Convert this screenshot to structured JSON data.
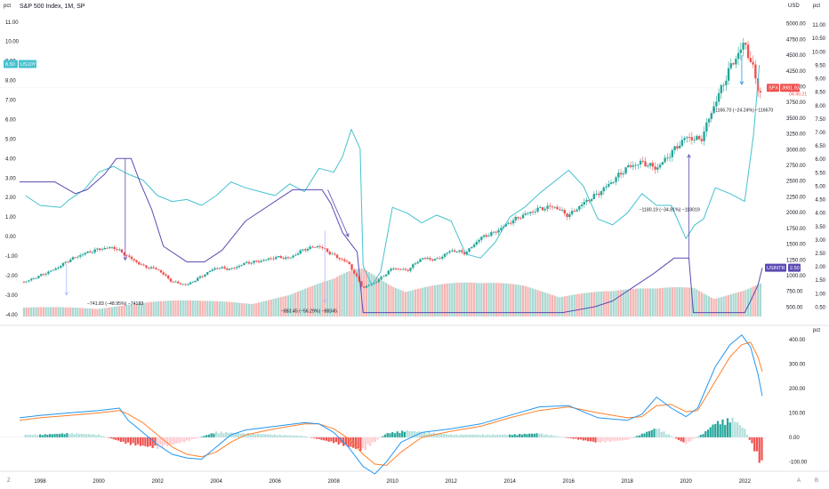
{
  "header": {
    "title": "S&P 500 Index, 1M, SP"
  },
  "units": {
    "left": "pct",
    "right_top": "USD",
    "right_far": "pct",
    "lower_right": "pct"
  },
  "bottom_corners": {
    "left": "Z",
    "right_a": "A",
    "right_b": "B"
  },
  "colors": {
    "up": "#26a69a",
    "down": "#ef5350",
    "up_vol": "#a8d8d2",
    "down_vol": "#f5b5b3",
    "us10y": "#45c1cf",
    "ustr": "#5b4bb2",
    "macd": "#2196f3",
    "signal": "#ff7f2a",
    "hist_up": "#26a69a",
    "hist_up_light": "#b2dfdb",
    "hist_down": "#ef5350",
    "hist_down_light": "#ffcdd2"
  },
  "chart_data": [
    {
      "type": "line",
      "title": "S&P 500 Index, 1M, SP",
      "xlim": [
        1997.3,
        2022.75
      ],
      "x_ticks": [
        "1998",
        "2000",
        "2002",
        "2004",
        "2006",
        "2008",
        "2010",
        "2012",
        "2014",
        "2016",
        "2018",
        "2020",
        "2022"
      ],
      "price_axis": {
        "unit": "USD",
        "ylim": [
          350,
          5150
        ],
        "ticks": [
          "500.00",
          "750.00",
          "1000.00",
          "1250.00",
          "1500.00",
          "1750.00",
          "2000.00",
          "2250.00",
          "2500.00",
          "2750.00",
          "3000.00",
          "3250.00",
          "3500.00",
          "3750.00",
          "4000.00",
          "4250.00",
          "4500.00",
          "4750.00",
          "5000.00"
        ]
      },
      "left_axis": {
        "unit": "pct",
        "ylim": [
          -4.1,
          11.4
        ],
        "ticks": [
          "-4.00",
          "-3.00",
          "-2.00",
          "-1.00",
          "0.00",
          "1.00",
          "2.00",
          "3.00",
          "4.00",
          "5.00",
          "6.00",
          "7.00",
          "8.00",
          "9.00",
          "10.00",
          "11.00"
        ]
      },
      "right_pct_axis": {
        "unit": "pct",
        "ylim": [
          0.15,
          11.4
        ],
        "ticks": [
          "0.50",
          "1.00",
          "1.50",
          "2.00",
          "2.50",
          "3.00",
          "3.50",
          "4.00",
          "4.50",
          "5.00",
          "5.50",
          "6.00",
          "6.50",
          "7.00",
          "7.50",
          "8.00",
          "8.50",
          "9.00",
          "9.50",
          "10.00",
          "10.50",
          "11.00"
        ]
      },
      "series": [
        {
          "name": "SPX",
          "kind": "candles",
          "x": [
            1997.5,
            1998,
            1998.5,
            1999,
            1999.5,
            2000,
            2000.5,
            2001,
            2001.5,
            2002,
            2002.5,
            2003,
            2003.5,
            2004,
            2004.5,
            2005,
            2005.5,
            2006,
            2006.5,
            2007,
            2007.5,
            2008,
            2008.5,
            2009,
            2009.5,
            2010,
            2010.5,
            2011,
            2011.5,
            2012,
            2012.5,
            2013,
            2013.5,
            2014,
            2014.5,
            2015,
            2015.5,
            2016,
            2016.5,
            2017,
            2017.5,
            2018,
            2018.5,
            2019,
            2019.5,
            2020,
            2020.5,
            2021,
            2021.5,
            2022,
            2022.3,
            2022.5
          ],
          "close": [
            900,
            1000,
            1100,
            1250,
            1350,
            1420,
            1450,
            1300,
            1150,
            1100,
            900,
            850,
            990,
            1130,
            1100,
            1200,
            1230,
            1290,
            1280,
            1420,
            1470,
            1320,
            1200,
            800,
            920,
            1120,
            1080,
            1280,
            1250,
            1400,
            1360,
            1600,
            1690,
            1850,
            1970,
            2060,
            2100,
            1950,
            2150,
            2300,
            2500,
            2720,
            2800,
            2700,
            2950,
            3200,
            3150,
            3750,
            4300,
            4700,
            4250,
            3900
          ]
        },
        {
          "name": "Volume",
          "kind": "columns",
          "note": "relative monthly volume, up/down shading",
          "x": [
            1997.5,
            1999,
            2000.5,
            2002,
            2003.5,
            2005,
            2006.5,
            2008,
            2008.5,
            2009,
            2010,
            2011.5,
            2013,
            2014.5,
            2016,
            2017.5,
            2019,
            2020.3,
            2021,
            2022,
            2022.5
          ],
          "values": [
            8,
            10,
            12,
            14,
            15,
            18,
            22,
            34,
            42,
            48,
            38,
            34,
            30,
            32,
            28,
            24,
            26,
            34,
            26,
            28,
            32
          ]
        },
        {
          "name": "US10Y",
          "kind": "line",
          "axis": "left_pct",
          "x": [
            1997.5,
            1998,
            1998.7,
            1999,
            1999.5,
            2000,
            2000.5,
            2001,
            2001.5,
            2002,
            2002.5,
            2003,
            2003.5,
            2004,
            2004.5,
            2005,
            2005.5,
            2006,
            2006.5,
            2007,
            2007.5,
            2008,
            2008.3,
            2008.6,
            2008.9,
            2009,
            2009.3,
            2009.6,
            2010,
            2010.5,
            2011,
            2011.5,
            2012,
            2012.5,
            2013,
            2013.5,
            2014,
            2014.5,
            2015,
            2015.5,
            2016,
            2016.5,
            2017,
            2017.5,
            2018,
            2018.5,
            2019,
            2019.5,
            2020,
            2020.3,
            2020.6,
            2021,
            2021.5,
            2022,
            2022.3,
            2022.5
          ],
          "y": [
            2.1,
            1.6,
            1.5,
            1.9,
            2.4,
            3.3,
            3.6,
            3.2,
            2.9,
            2.1,
            1.8,
            1.9,
            1.6,
            2.1,
            2.8,
            2.5,
            2.3,
            2.1,
            2.7,
            2.3,
            3.5,
            3.3,
            4.1,
            5.5,
            4.5,
            -1.5,
            -2.5,
            -1.8,
            1.5,
            1.2,
            0.7,
            1.1,
            0.8,
            -0.9,
            -1.1,
            -0.3,
            1.0,
            1.5,
            2.2,
            2.8,
            3.4,
            2.6,
            0.9,
            0.6,
            1.2,
            2.2,
            1.6,
            1.6,
            -0.1,
            0.6,
            0.9,
            2.5,
            2.2,
            1.8,
            5.2,
            8.8
          ]
        },
        {
          "name": "USINTR",
          "kind": "step",
          "axis": "left_pct",
          "x": [
            1997.3,
            1998.5,
            1999.2,
            1999.6,
            2000.2,
            2000.6,
            2001.1,
            2001.4,
            2001.8,
            2002.2,
            2003.0,
            2003.6,
            2004.2,
            2005,
            2006.6,
            2007.6,
            2007.9,
            2008.3,
            2008.8,
            2009,
            2015.8,
            2016.9,
            2017.5,
            2018.2,
            2018.9,
            2019.6,
            2020.1,
            2020.25,
            2022.0,
            2022.2,
            2022.45,
            2022.6
          ],
          "y": [
            2.8,
            2.8,
            2.2,
            2.4,
            3.2,
            4.0,
            4.0,
            2.8,
            1.4,
            -0.5,
            -1.3,
            -1.3,
            -0.7,
            0.8,
            2.4,
            2.4,
            1.7,
            0.2,
            -0.8,
            -3.9,
            -3.9,
            -3.6,
            -3.3,
            -2.6,
            -1.9,
            -1.1,
            -1.1,
            -3.9,
            -3.9,
            -3.3,
            -2.5,
            -1.6
          ]
        }
      ],
      "annotations": [
        "−741.83 (−48.95%) −74183",
        "−883.45 (−56.29%) −88345",
        "−1180.19 (−34.81%) −118019",
        "−1166.70 (−24.24%) −116670"
      ],
      "labels": {
        "us10y_badge": "US10Y",
        "us10y_value": "8.50",
        "spx_badge": "SPX",
        "spx_value": "3981.93",
        "spx_countdown": "04:45:21",
        "ustr_badge": "USINTR",
        "ustr_value": "2.50"
      }
    },
    {
      "type": "line",
      "title": "",
      "unit": "pct",
      "xlim": [
        1997.3,
        2022.75
      ],
      "ylim": [
        -110,
        430
      ],
      "y_ticks": [
        "400.00",
        "300.00",
        "200.00",
        "100.00",
        "0.00",
        "-100.00"
      ],
      "series": [
        {
          "name": "",
          "kind": "macd",
          "x": [
            1997.3,
            1998,
            1999,
            2000,
            2000.7,
            2001,
            2001.5,
            2002,
            2002.5,
            2003,
            2003.5,
            2004,
            2004.5,
            2005,
            2006,
            2007,
            2007.5,
            2008,
            2008.5,
            2009,
            2009.4,
            2009.8,
            2010.3,
            2011,
            2012,
            2013,
            2014,
            2015,
            2016,
            2017,
            2018,
            2018.5,
            2019,
            2019.5,
            2020,
            2020.4,
            2021,
            2021.5,
            2021.9,
            2022.2,
            2022.45,
            2022.6
          ],
          "y": [
            80,
            90,
            100,
            110,
            120,
            70,
            20,
            -30,
            -70,
            -85,
            -90,
            -40,
            10,
            30,
            45,
            60,
            55,
            20,
            -40,
            -120,
            -150,
            -100,
            -20,
            20,
            35,
            55,
            90,
            125,
            130,
            80,
            70,
            95,
            165,
            120,
            85,
            120,
            290,
            380,
            420,
            370,
            260,
            170
          ]
        },
        {
          "name": "",
          "kind": "signal",
          "x": [
            1997.3,
            1998,
            1999,
            2000,
            2000.7,
            2001,
            2001.5,
            2002,
            2002.5,
            2003,
            2003.5,
            2004,
            2004.5,
            2005,
            2006,
            2007,
            2007.5,
            2008,
            2008.5,
            2009,
            2009.4,
            2009.8,
            2010.3,
            2011,
            2012,
            2013,
            2014,
            2015,
            2016,
            2017,
            2018,
            2018.5,
            2019,
            2019.5,
            2020,
            2020.4,
            2021,
            2021.5,
            2021.9,
            2022.2,
            2022.45,
            2022.6
          ],
          "y": [
            70,
            80,
            90,
            100,
            110,
            95,
            60,
            10,
            -40,
            -70,
            -80,
            -60,
            -20,
            10,
            35,
            55,
            55,
            35,
            -5,
            -70,
            -110,
            -115,
            -60,
            0,
            25,
            45,
            80,
            110,
            125,
            100,
            80,
            85,
            130,
            135,
            105,
            110,
            230,
            330,
            380,
            390,
            330,
            270
          ]
        },
        {
          "name": "",
          "kind": "histogram",
          "x": [
            1998,
            1999,
            2000,
            2001,
            2002,
            2003,
            2004,
            2005,
            2006,
            2007,
            2008,
            2009,
            2009.8,
            2010.5,
            2012,
            2014,
            2015,
            2017,
            2018,
            2019,
            2020,
            2020.6,
            2021,
            2021.6,
            2022,
            2022.3,
            2022.55
          ],
          "y": [
            10,
            15,
            10,
            -25,
            -40,
            -15,
            20,
            15,
            10,
            5,
            -20,
            -50,
            15,
            25,
            10,
            10,
            15,
            -20,
            -10,
            35,
            -25,
            15,
            55,
            70,
            30,
            -40,
            -100
          ]
        }
      ]
    }
  ]
}
